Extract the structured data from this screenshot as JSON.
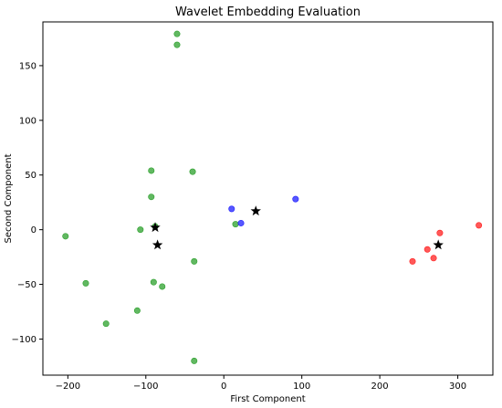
{
  "chart_data": {
    "type": "scatter",
    "title": "Wavelet Embedding  Evaluation",
    "xlabel": "First Component",
    "ylabel": "Second Component",
    "xlim": [
      -232,
      345
    ],
    "ylim": [
      -133,
      190
    ],
    "xticks": [
      -200,
      -100,
      0,
      100,
      200,
      300
    ],
    "yticks": [
      -100,
      -50,
      0,
      50,
      100,
      150
    ],
    "grid": false,
    "legend": "none",
    "series": [
      {
        "color": "#2ca02c",
        "marker": "circle",
        "points": [
          [
            -60,
            179
          ],
          [
            -60,
            169
          ],
          [
            -93,
            54
          ],
          [
            -40,
            53
          ],
          [
            -93,
            30
          ],
          [
            -88,
            3
          ],
          [
            -107,
            0
          ],
          [
            -203,
            -6
          ],
          [
            -38,
            -29
          ],
          [
            -177,
            -49
          ],
          [
            -90,
            -48
          ],
          [
            -79,
            -52
          ],
          [
            -111,
            -74
          ],
          [
            -151,
            -86
          ],
          [
            -38,
            -120
          ],
          [
            15,
            5
          ]
        ]
      },
      {
        "color": "#1f1fff",
        "marker": "circle",
        "points": [
          [
            10,
            19
          ],
          [
            22,
            6
          ],
          [
            92,
            28
          ]
        ]
      },
      {
        "color": "#ff2020",
        "marker": "circle",
        "points": [
          [
            327,
            4
          ],
          [
            277,
            -3
          ],
          [
            261,
            -18
          ],
          [
            269,
            -26
          ],
          [
            242,
            -29
          ]
        ]
      },
      {
        "color": "#000000",
        "marker": "star",
        "points": [
          [
            -88,
            2
          ],
          [
            -85,
            -14
          ],
          [
            41,
            17
          ],
          [
            275,
            -14
          ]
        ]
      }
    ]
  }
}
